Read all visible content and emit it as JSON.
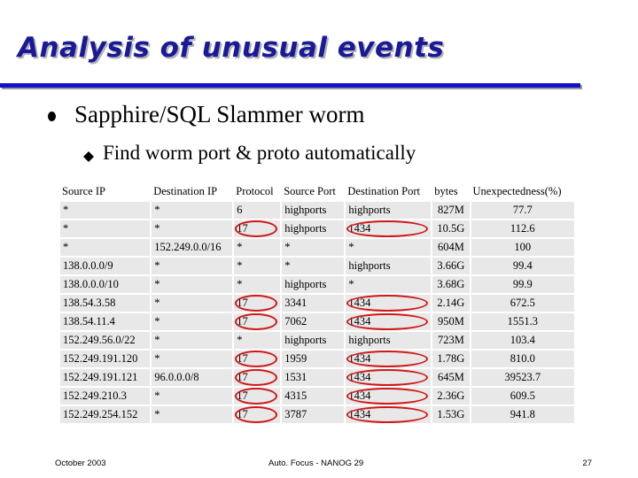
{
  "slide": {
    "title": "Analysis of unusual events",
    "bullet_level1": "Sapphire/SQL Slammer worm",
    "bullet_level2": "Find worm port & proto automatically"
  },
  "table": {
    "columns": [
      "Source IP",
      "Destination IP",
      "Protocol",
      "Source Port",
      "Destination Port",
      "bytes",
      "Unexpectedness(%)"
    ],
    "rows": [
      [
        "*",
        "*",
        "6",
        "highports",
        "highports",
        "827M",
        "77.7"
      ],
      [
        "*",
        "*",
        "17",
        "highports",
        "1434",
        "10.5G",
        "112.6"
      ],
      [
        "*",
        "152.249.0.0/16",
        "*",
        "*",
        "*",
        "604M",
        "100"
      ],
      [
        "138.0.0.0/9",
        "*",
        "*",
        "*",
        "highports",
        "3.66G",
        "99.4"
      ],
      [
        "138.0.0.0/10",
        "*",
        "*",
        "highports",
        "*",
        "3.68G",
        "99.9"
      ],
      [
        "138.54.3.58",
        "*",
        "17",
        "3341",
        "1434",
        "2.14G",
        "672.5"
      ],
      [
        "138.54.11.4",
        "*",
        "17",
        "7062",
        "1434",
        "950M",
        "1551.3"
      ],
      [
        "152.249.56.0/22",
        "*",
        "*",
        "highports",
        "highports",
        "723M",
        "103.4"
      ],
      [
        "152.249.191.120",
        "*",
        "17",
        "1959",
        "1434",
        "1.78G",
        "810.0"
      ],
      [
        "152.249.191.121",
        "96.0.0.0/8",
        "17",
        "1531",
        "1434",
        "645M",
        "39523.7"
      ],
      [
        "152.249.210.3",
        "*",
        "17",
        "4315",
        "1434",
        "2.36G",
        "609.5"
      ],
      [
        "152.249.254.152",
        "*",
        "17",
        "3787",
        "1434",
        "1.53G",
        "941.8"
      ]
    ],
    "circled_values": [
      "17",
      "1434"
    ]
  },
  "footer": {
    "date": "October 2003",
    "center": "Auto. Focus - NANOG 29",
    "page": "27"
  },
  "colors": {
    "title": "#1a1a99",
    "rule": "#1111cc",
    "cell_bg": "#e8e8e8",
    "circle": "#d01818"
  },
  "icons": {
    "bullet_level1": "filled-circle",
    "bullet_level2": "filled-diamond"
  }
}
